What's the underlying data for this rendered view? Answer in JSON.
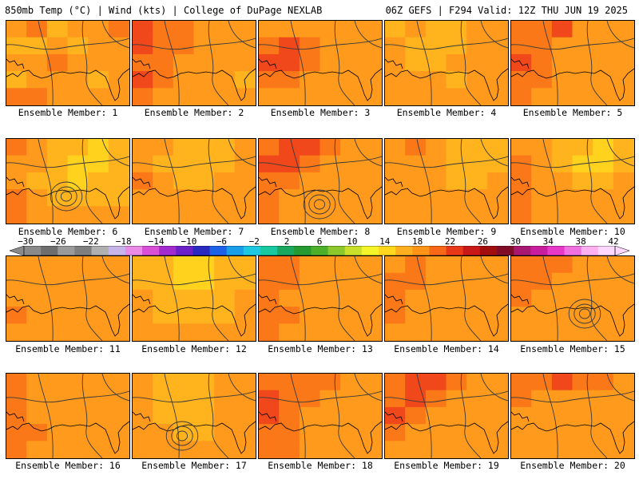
{
  "header": {
    "left": "850mb Temp (°C) | Wind (kts) | College of DuPage NEXLAB",
    "right": "06Z GEFS | F294 Valid: 12Z THU JUN 19 2025"
  },
  "panels": [
    {
      "label": "Ensemble Member: 1",
      "temps": [
        22,
        24,
        20,
        22,
        22,
        24,
        20,
        20,
        22,
        20,
        22,
        22,
        22,
        22,
        24,
        22,
        22,
        22,
        20,
        22,
        22,
        22,
        20,
        22,
        24,
        24,
        22,
        22,
        22,
        22
      ],
      "low": false
    },
    {
      "label": "Ensemble Member: 2",
      "temps": [
        26,
        24,
        24,
        22,
        22,
        22,
        26,
        24,
        24,
        22,
        22,
        22,
        24,
        24,
        22,
        22,
        22,
        22,
        26,
        24,
        22,
        22,
        22,
        20,
        24,
        22,
        22,
        22,
        22,
        22
      ],
      "low": false
    },
    {
      "label": "Ensemble Member: 3",
      "temps": [
        22,
        22,
        22,
        22,
        22,
        22,
        24,
        26,
        24,
        22,
        22,
        22,
        26,
        26,
        24,
        22,
        22,
        22,
        24,
        24,
        22,
        22,
        22,
        22,
        22,
        22,
        22,
        22,
        22,
        22
      ],
      "low": false
    },
    {
      "label": "Ensemble Member: 4",
      "temps": [
        20,
        22,
        20,
        20,
        22,
        22,
        22,
        20,
        20,
        20,
        22,
        22,
        22,
        20,
        20,
        22,
        22,
        22,
        22,
        22,
        22,
        20,
        22,
        22,
        22,
        22,
        22,
        22,
        22,
        22
      ],
      "low": false
    },
    {
      "label": "Ensemble Member: 5",
      "temps": [
        24,
        24,
        26,
        22,
        22,
        22,
        24,
        24,
        22,
        22,
        22,
        22,
        26,
        24,
        22,
        22,
        22,
        22,
        24,
        24,
        22,
        22,
        22,
        22,
        24,
        22,
        22,
        22,
        22,
        22
      ],
      "low": false
    },
    {
      "label": "Ensemble Member: 6",
      "temps": [
        24,
        22,
        20,
        20,
        18,
        20,
        22,
        22,
        20,
        18,
        18,
        20,
        22,
        20,
        20,
        18,
        20,
        20,
        24,
        22,
        20,
        20,
        20,
        20,
        24,
        22,
        22,
        22,
        22,
        22
      ],
      "low": true
    },
    {
      "label": "Ensemble Member: 7",
      "temps": [
        22,
        22,
        20,
        20,
        20,
        22,
        22,
        20,
        20,
        20,
        20,
        22,
        24,
        22,
        20,
        20,
        22,
        22,
        22,
        22,
        22,
        22,
        22,
        22,
        22,
        22,
        22,
        22,
        22,
        22
      ],
      "low": false
    },
    {
      "label": "Ensemble Member: 8",
      "temps": [
        24,
        26,
        26,
        24,
        22,
        22,
        26,
        26,
        24,
        22,
        22,
        22,
        24,
        24,
        22,
        22,
        22,
        22,
        24,
        22,
        22,
        22,
        22,
        22,
        24,
        22,
        22,
        22,
        22,
        22
      ],
      "low": true
    },
    {
      "label": "Ensemble Member: 9",
      "temps": [
        22,
        24,
        22,
        20,
        20,
        20,
        22,
        22,
        22,
        20,
        20,
        20,
        22,
        22,
        22,
        20,
        20,
        22,
        22,
        22,
        22,
        22,
        22,
        22,
        22,
        22,
        22,
        22,
        22,
        22
      ],
      "low": false
    },
    {
      "label": "Ensemble Member: 10",
      "temps": [
        22,
        22,
        20,
        20,
        18,
        20,
        24,
        22,
        20,
        18,
        18,
        20,
        24,
        22,
        22,
        20,
        20,
        22,
        24,
        22,
        22,
        22,
        22,
        22,
        24,
        22,
        22,
        22,
        22,
        22
      ],
      "low": false
    },
    {
      "label": "Ensemble Member: 11",
      "temps": [
        22,
        22,
        22,
        22,
        22,
        22,
        22,
        22,
        22,
        22,
        22,
        22,
        22,
        22,
        22,
        22,
        22,
        22,
        24,
        22,
        22,
        22,
        22,
        22,
        22,
        22,
        22,
        22,
        22,
        22
      ],
      "low": false
    },
    {
      "label": "Ensemble Member: 12",
      "temps": [
        20,
        20,
        18,
        18,
        20,
        20,
        20,
        20,
        18,
        18,
        20,
        20,
        22,
        20,
        20,
        20,
        20,
        22,
        22,
        20,
        20,
        20,
        20,
        22,
        22,
        22,
        22,
        22,
        22,
        22
      ],
      "low": false
    },
    {
      "label": "Ensemble Member: 13",
      "temps": [
        24,
        24,
        22,
        22,
        22,
        22,
        24,
        24,
        22,
        22,
        22,
        22,
        24,
        22,
        22,
        22,
        22,
        22,
        24,
        24,
        22,
        22,
        22,
        22,
        24,
        22,
        22,
        22,
        22,
        22
      ],
      "low": false
    },
    {
      "label": "Ensemble Member: 14",
      "temps": [
        22,
        24,
        22,
        22,
        22,
        22,
        24,
        24,
        22,
        22,
        22,
        22,
        24,
        22,
        22,
        22,
        22,
        22,
        24,
        22,
        22,
        22,
        22,
        22,
        22,
        22,
        22,
        22,
        22,
        22
      ],
      "low": false
    },
    {
      "label": "Ensemble Member: 15",
      "temps": [
        24,
        24,
        24,
        22,
        22,
        22,
        24,
        24,
        22,
        22,
        22,
        22,
        24,
        22,
        22,
        22,
        22,
        22,
        22,
        22,
        22,
        22,
        22,
        22,
        22,
        22,
        22,
        22,
        22,
        22
      ],
      "low": true
    },
    {
      "label": "Ensemble Member: 16",
      "temps": [
        24,
        22,
        22,
        22,
        22,
        22,
        24,
        22,
        22,
        22,
        22,
        22,
        24,
        22,
        22,
        22,
        22,
        22,
        24,
        24,
        22,
        22,
        22,
        22,
        24,
        22,
        22,
        22,
        22,
        22
      ],
      "low": false
    },
    {
      "label": "Ensemble Member: 17",
      "temps": [
        22,
        20,
        20,
        20,
        22,
        22,
        22,
        20,
        20,
        20,
        22,
        22,
        22,
        20,
        20,
        20,
        22,
        22,
        22,
        22,
        20,
        20,
        22,
        22,
        22,
        22,
        22,
        22,
        22,
        22
      ],
      "low": true
    },
    {
      "label": "Ensemble Member: 18",
      "temps": [
        24,
        24,
        24,
        24,
        22,
        22,
        26,
        24,
        24,
        22,
        22,
        22,
        26,
        24,
        22,
        22,
        22,
        22,
        24,
        24,
        22,
        22,
        22,
        22,
        24,
        24,
        22,
        22,
        22,
        22
      ],
      "low": false
    },
    {
      "label": "Ensemble Member: 19",
      "temps": [
        24,
        26,
        26,
        24,
        22,
        22,
        24,
        26,
        24,
        22,
        22,
        22,
        26,
        24,
        22,
        22,
        22,
        22,
        24,
        22,
        22,
        22,
        22,
        22,
        22,
        22,
        22,
        22,
        22,
        22
      ],
      "low": false
    },
    {
      "label": "Ensemble Member: 20",
      "temps": [
        24,
        24,
        26,
        24,
        24,
        22,
        24,
        22,
        22,
        22,
        22,
        22,
        22,
        22,
        22,
        22,
        22,
        22,
        22,
        22,
        22,
        22,
        22,
        22,
        22,
        22,
        22,
        22,
        22,
        22
      ],
      "low": false
    }
  ],
  "colorbar": {
    "labels": [
      "−30",
      "−26",
      "−22",
      "−18",
      "−14",
      "−10",
      "−6",
      "−2",
      "2",
      "6",
      "10",
      "14",
      "18",
      "22",
      "26",
      "30",
      "34",
      "38",
      "42"
    ],
    "colors": [
      "#8a8a8a",
      "#6e6e6e",
      "#9a9a9a",
      "#7f7f7f",
      "#b0b0b0",
      "#c7b4e8",
      "#e98be6",
      "#d94fd6",
      "#a22bd0",
      "#6a22c8",
      "#2a2ac0",
      "#1c62e8",
      "#1a9ee8",
      "#1ec8e0",
      "#18c8a0",
      "#1aa860",
      "#249a30",
      "#4cb02a",
      "#8cc82c",
      "#c8e02c",
      "#f4f428",
      "#ffd81e",
      "#ffb020",
      "#ff9418",
      "#f86818",
      "#e83818",
      "#c81818",
      "#a00e0e",
      "#800c28",
      "#a81870",
      "#c81e9e",
      "#e838c8",
      "#f070e0",
      "#ffb0f0",
      "#ffd8ff"
    ],
    "left_arrow_color": "#8a8a8a",
    "right_arrow_color": "#ffd8ff"
  },
  "palette": {
    "18": "#ffd21e",
    "20": "#ffb41e",
    "22": "#ff9a1c",
    "24": "#fa7818",
    "26": "#f0481a"
  }
}
